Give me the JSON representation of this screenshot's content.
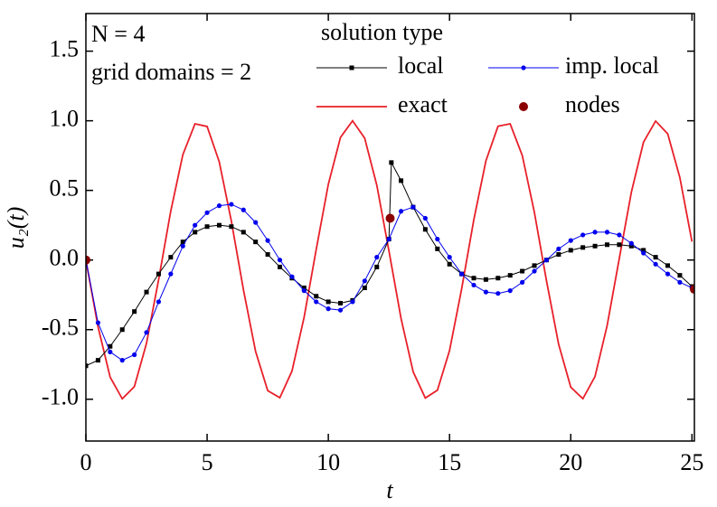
{
  "chart_data": {
    "type": "line",
    "annotations": [
      "N = 4",
      "grid domains = 2"
    ],
    "legend_title": "solution type",
    "xlabel": "t",
    "ylabel": "u₂(t)",
    "xlim": [
      0,
      25.1
    ],
    "ylim": [
      -1.3,
      1.77
    ],
    "xticks": [
      0,
      5,
      10,
      15,
      20,
      25
    ],
    "yticks": [
      {
        "value": -1,
        "label": "-1.0"
      },
      -0.5,
      {
        "value": 0,
        "label": "0.0"
      },
      0.5,
      {
        "value": 1,
        "label": "1.0"
      },
      1.5
    ],
    "series": [
      {
        "name": "local",
        "color": "#000000",
        "marker": "square",
        "line": true,
        "x": [
          0,
          0.5,
          1,
          1.5,
          2,
          2.5,
          3,
          3.5,
          4,
          4.5,
          5,
          5.5,
          6,
          6.5,
          7,
          7.5,
          8,
          8.5,
          9,
          9.5,
          10,
          10.5,
          11,
          11.5,
          12,
          12.5,
          12.6,
          13,
          13.5,
          14,
          14.5,
          15,
          15.5,
          16,
          16.5,
          17,
          17.5,
          18,
          18.5,
          19,
          19.5,
          20,
          20.5,
          21,
          21.5,
          22,
          22.5,
          23,
          23.5,
          24,
          24.5,
          25
        ],
        "values": [
          -0.76,
          -0.72,
          -0.62,
          -0.5,
          -0.37,
          -0.23,
          -0.1,
          0.02,
          0.13,
          0.2,
          0.24,
          0.25,
          0.24,
          0.2,
          0.13,
          0.04,
          -0.05,
          -0.13,
          -0.2,
          -0.26,
          -0.3,
          -0.31,
          -0.29,
          -0.2,
          -0.05,
          0.15,
          0.7,
          0.57,
          0.38,
          0.22,
          0.08,
          -0.03,
          -0.1,
          -0.13,
          -0.14,
          -0.13,
          -0.11,
          -0.08,
          -0.04,
          0,
          0.04,
          0.07,
          0.09,
          0.1,
          0.11,
          0.11,
          0.1,
          0.07,
          0.02,
          -0.04,
          -0.11,
          -0.19
        ]
      },
      {
        "name": "imp. local",
        "color": "#0000ee",
        "marker": "circle",
        "line": true,
        "x": [
          0,
          0.5,
          1,
          1.5,
          2,
          2.5,
          3,
          3.5,
          4,
          4.5,
          5,
          5.5,
          6,
          6.5,
          7,
          7.5,
          8,
          8.5,
          9,
          9.5,
          10,
          10.5,
          11,
          11.5,
          12,
          12.5,
          13,
          13.5,
          14,
          14.5,
          15,
          15.5,
          16,
          16.5,
          17,
          17.5,
          18,
          18.5,
          19,
          19.5,
          20,
          20.5,
          21,
          21.5,
          22,
          22.5,
          23,
          23.5,
          24,
          24.5,
          25
        ],
        "values": [
          0,
          -0.45,
          -0.66,
          -0.72,
          -0.68,
          -0.52,
          -0.3,
          -0.1,
          0.1,
          0.25,
          0.34,
          0.39,
          0.4,
          0.36,
          0.27,
          0.14,
          0,
          -0.12,
          -0.22,
          -0.3,
          -0.35,
          -0.36,
          -0.3,
          -0.15,
          0.02,
          0.15,
          0.35,
          0.38,
          0.3,
          0.15,
          0.02,
          -0.1,
          -0.18,
          -0.23,
          -0.24,
          -0.22,
          -0.16,
          -0.08,
          0,
          0.08,
          0.14,
          0.18,
          0.2,
          0.2,
          0.18,
          0.12,
          0.05,
          -0.03,
          -0.1,
          -0.16,
          -0.2
        ]
      },
      {
        "name": "exact",
        "color": "#e8202a",
        "marker": "none",
        "line": true,
        "x": [
          0,
          0.5,
          1,
          1.5,
          2,
          2.5,
          3,
          3.5,
          4,
          4.5,
          5,
          5.5,
          6,
          6.5,
          7,
          7.5,
          8,
          8.5,
          9,
          9.5,
          10,
          10.5,
          11,
          11.5,
          12,
          12.5,
          13,
          13.5,
          14,
          14.5,
          15,
          15.5,
          16,
          16.5,
          17,
          17.5,
          18,
          18.5,
          19,
          19.5,
          20,
          20.5,
          21,
          21.5,
          22,
          22.5,
          23,
          23.5,
          24,
          24.5,
          25
        ],
        "values": [
          0,
          -0.479,
          -0.841,
          -0.997,
          -0.909,
          -0.598,
          -0.141,
          0.351,
          0.757,
          0.978,
          0.959,
          0.706,
          0.279,
          -0.215,
          -0.657,
          -0.938,
          -0.989,
          -0.798,
          -0.412,
          0.075,
          0.544,
          0.88,
          1,
          0.875,
          0.537,
          0.066,
          -0.42,
          -0.803,
          -0.991,
          -0.935,
          -0.65,
          -0.207,
          0.288,
          0.712,
          0.961,
          0.978,
          0.751,
          0.342,
          -0.15,
          -0.605,
          -0.913,
          -0.996,
          -0.837,
          -0.471,
          0.009,
          0.487,
          0.846,
          0.998,
          0.906,
          0.592,
          0.132
        ]
      },
      {
        "name": "nodes",
        "color": "#8b0000",
        "marker": "dot",
        "line": false,
        "x": [
          0,
          12.55,
          25.1
        ],
        "values": [
          0,
          0.3,
          -0.21
        ]
      }
    ]
  }
}
